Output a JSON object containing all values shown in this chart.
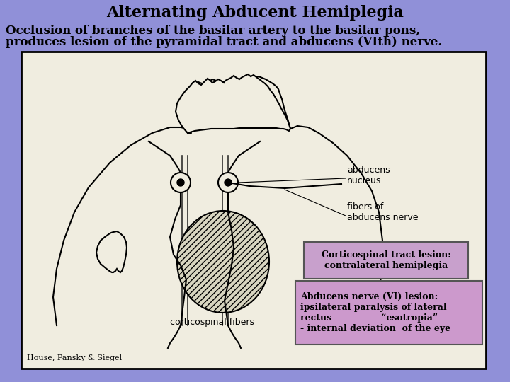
{
  "title": "Alternating Abducent Hemiplegia",
  "subtitle_line1": "Occlusion of branches of the basilar artery to the basilar pons,",
  "subtitle_line2": "produces lesion of the pyramidal tract and abducens (VIth) nerve.",
  "background_color": "#9090d8",
  "image_bg_color": "#f0ede0",
  "box1_color": "#c8a0cc",
  "box2_color": "#cc99cc",
  "box1_text": "Corticospinal tract lesion:\ncontralateral hemiplegia",
  "box2_text": "Abducens nerve (VI) lesion:\nipsilateral paralysis of lateral\nrectus                “esotropia”\n- internal deviation  of the eye",
  "source_text": "House, Pansky & Siegel",
  "label_abducens_nucleus": "abducens\nnucleus",
  "label_fibers": "fibers of\nabducens nerve",
  "label_corticospinal": "corticospinal fibers"
}
